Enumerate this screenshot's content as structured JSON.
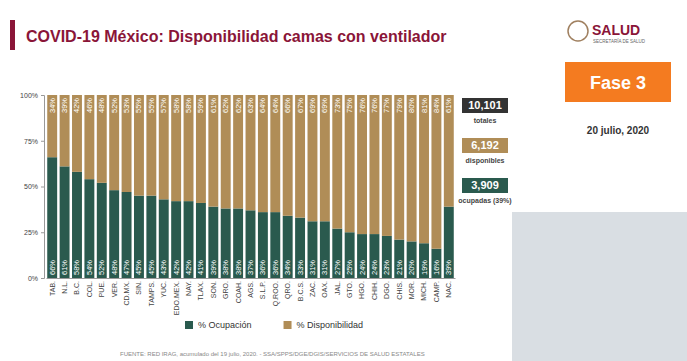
{
  "header": {
    "logo": "SALUD",
    "logo_subtitle": "SECRETARÍA DE SALUD"
  },
  "phase": "Fase 3",
  "date": "20 julio, 2020",
  "totals": [
    {
      "value": "10,101",
      "label": "totales",
      "color": "#333333"
    },
    {
      "value": "6,192",
      "label": "disponibles",
      "color": "#b08d57"
    },
    {
      "value": "3,909",
      "label": "ocupadas (39%)",
      "color": "#2a5a4e"
    }
  ],
  "source": "FUENTE: RED IRAG, acumulado del 19 julio, 2020. - SSA/SPPS/DGE/DGIS/SERVICIOS DE SALUD ESTATALES",
  "chart_data": {
    "type": "bar",
    "title": "COVID-19 México: Disponibilidad camas con ventilador",
    "stacked": true,
    "data_labels": true,
    "grid": false,
    "legend": "bottom",
    "categories": [
      "TAB.",
      "N.L.",
      "B.C.",
      "COL.",
      "PUE.",
      "VER.",
      "CD.MX.",
      "SIN.",
      "TAMPS.",
      "YUC.",
      "EDO.MEX.",
      "NAY.",
      "TLAX.",
      "SON.",
      "GRO.",
      "COAH.",
      "AGS.",
      "S.L.P.",
      "Q.ROO.",
      "QRO.",
      "B.C.S.",
      "ZAC.",
      "OAX.",
      "JAL.",
      "GTO.",
      "HGO.",
      "CHIH.",
      "DGO.",
      "CHIS.",
      "MOR.",
      "MICH.",
      "CAMP.",
      "NAC."
    ],
    "series": [
      {
        "name": "% Ocupación",
        "color": "#2a5a4e",
        "values": [
          66,
          61,
          58,
          54,
          52,
          48,
          47,
          45,
          45,
          43,
          42,
          42,
          41,
          39,
          38,
          38,
          37,
          36,
          36,
          34,
          33,
          31,
          31,
          27,
          25,
          24,
          24,
          23,
          21,
          20,
          19,
          16,
          39
        ],
        "value_labels": [
          "66%",
          "61%",
          "58%",
          "54%",
          "52%",
          "48%",
          "47%",
          "45%",
          "45%",
          "43%",
          "42%",
          "42%",
          "41%",
          "39%",
          "38%",
          "38%",
          "37%",
          "36%",
          "36%",
          "34%",
          "33%",
          "31%",
          "31%",
          "27%",
          "25%",
          "24%",
          "24%",
          "23%",
          "21%",
          "20%",
          "19%",
          "16%",
          "39%"
        ]
      },
      {
        "name": "% Disponibilidad",
        "color": "#b08d57",
        "values": [
          34,
          39,
          42,
          46,
          48,
          52,
          53,
          55,
          55,
          57,
          58,
          58,
          59,
          61,
          62,
          62,
          63,
          64,
          64,
          66,
          67,
          69,
          69,
          73,
          75,
          76,
          76,
          77,
          79,
          80,
          81,
          84,
          61
        ],
        "value_labels": [
          "34%",
          "39%",
          "42%",
          "46%",
          "48%",
          "52%",
          "53%",
          "55%",
          "55%",
          "57%",
          "58%",
          "58%",
          "59%",
          "61%",
          "62%",
          "62%",
          "63%",
          "64%",
          "64%",
          "66%",
          "67%",
          "69%",
          "69%",
          "73%",
          "75%",
          "76%",
          "76%",
          "77%",
          "79%",
          "80%",
          "81%",
          "84%",
          "61%"
        ]
      }
    ],
    "ylim": [
      0,
      100
    ],
    "yticks": [
      {
        "value": 0,
        "label": "0%"
      },
      {
        "value": 25,
        "label": "25%"
      },
      {
        "value": 50,
        "label": "50%"
      },
      {
        "value": 75,
        "label": "75%"
      },
      {
        "value": 100,
        "label": "100%"
      }
    ]
  }
}
